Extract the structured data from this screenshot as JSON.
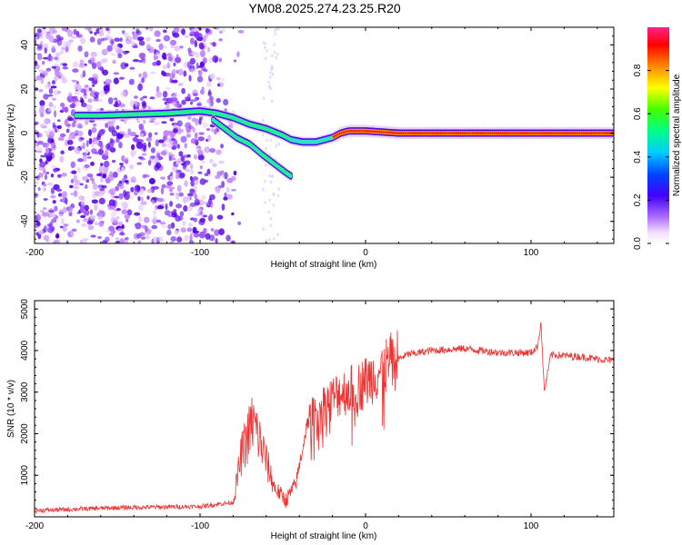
{
  "title": "YM08.2025.274.23.25.R20",
  "chart_data": [
    {
      "type": "heatmap",
      "name": "spectrogram",
      "xlabel": "Height of straight line (km)",
      "ylabel": "Frequency (Hz)",
      "xlim": [
        -200,
        150
      ],
      "ylim": [
        -50,
        48
      ],
      "xticks": [
        -200,
        -100,
        0,
        100
      ],
      "yticks": [
        -40,
        -20,
        0,
        20,
        40
      ],
      "colorbar": {
        "label": "Normalized spectral amplitude",
        "range": [
          0,
          1
        ],
        "ticks": [
          "0.0",
          "0.2",
          "0.4",
          "0.6",
          "0.8"
        ],
        "tick_values": [
          0.0,
          0.2,
          0.4,
          0.6,
          0.8
        ]
      },
      "traces": [
        {
          "name": "upper-branch",
          "points": [
            [
              -175,
              8
            ],
            [
              -160,
              8
            ],
            [
              -140,
              8.5
            ],
            [
              -120,
              9
            ],
            [
              -100,
              10
            ],
            [
              -90,
              9
            ],
            [
              -80,
              7
            ],
            [
              -70,
              4
            ],
            [
              -60,
              2
            ],
            [
              -50,
              -1
            ],
            [
              -45,
              -3
            ],
            [
              -38,
              -4
            ],
            [
              -30,
              -4
            ],
            [
              -20,
              -2
            ],
            [
              -15,
              0
            ],
            [
              -10,
              1
            ],
            [
              0,
              1
            ],
            [
              10,
              0.5
            ],
            [
              20,
              0
            ],
            [
              100,
              0
            ],
            [
              150,
              0
            ]
          ]
        },
        {
          "name": "lower-branch",
          "points": [
            [
              -92,
              6
            ],
            [
              -85,
              2
            ],
            [
              -78,
              -2
            ],
            [
              -70,
              -5
            ],
            [
              -62,
              -10
            ],
            [
              -55,
              -14
            ],
            [
              -48,
              -18
            ],
            [
              -44,
              -20
            ]
          ]
        }
      ]
    },
    {
      "type": "line",
      "name": "snr",
      "xlabel": "Height of straight line (km)",
      "ylabel": "SNR (10 * v/v)",
      "xlim": [
        -200,
        150
      ],
      "ylim": [
        0,
        5200
      ],
      "xticks": [
        -200,
        -100,
        0,
        100
      ],
      "yticks": [
        1000,
        2000,
        3000,
        4000,
        5000
      ],
      "color": "#ee3333",
      "envelope": [
        [
          -200,
          150
        ],
        [
          -150,
          220
        ],
        [
          -100,
          250
        ],
        [
          -80,
          350
        ],
        [
          -75,
          1500
        ],
        [
          -68,
          2300
        ],
        [
          -62,
          1600
        ],
        [
          -55,
          700
        ],
        [
          -48,
          400
        ],
        [
          -42,
          800
        ],
        [
          -35,
          2300
        ],
        [
          -25,
          2700
        ],
        [
          -15,
          3000
        ],
        [
          -5,
          3100
        ],
        [
          5,
          3400
        ],
        [
          15,
          3700
        ],
        [
          25,
          3900
        ],
        [
          40,
          4000
        ],
        [
          60,
          4050
        ],
        [
          80,
          3950
        ],
        [
          100,
          3950
        ],
        [
          104,
          4100
        ],
        [
          106,
          4700
        ],
        [
          108,
          3000
        ],
        [
          112,
          3900
        ],
        [
          130,
          3850
        ],
        [
          150,
          3750
        ]
      ]
    }
  ]
}
